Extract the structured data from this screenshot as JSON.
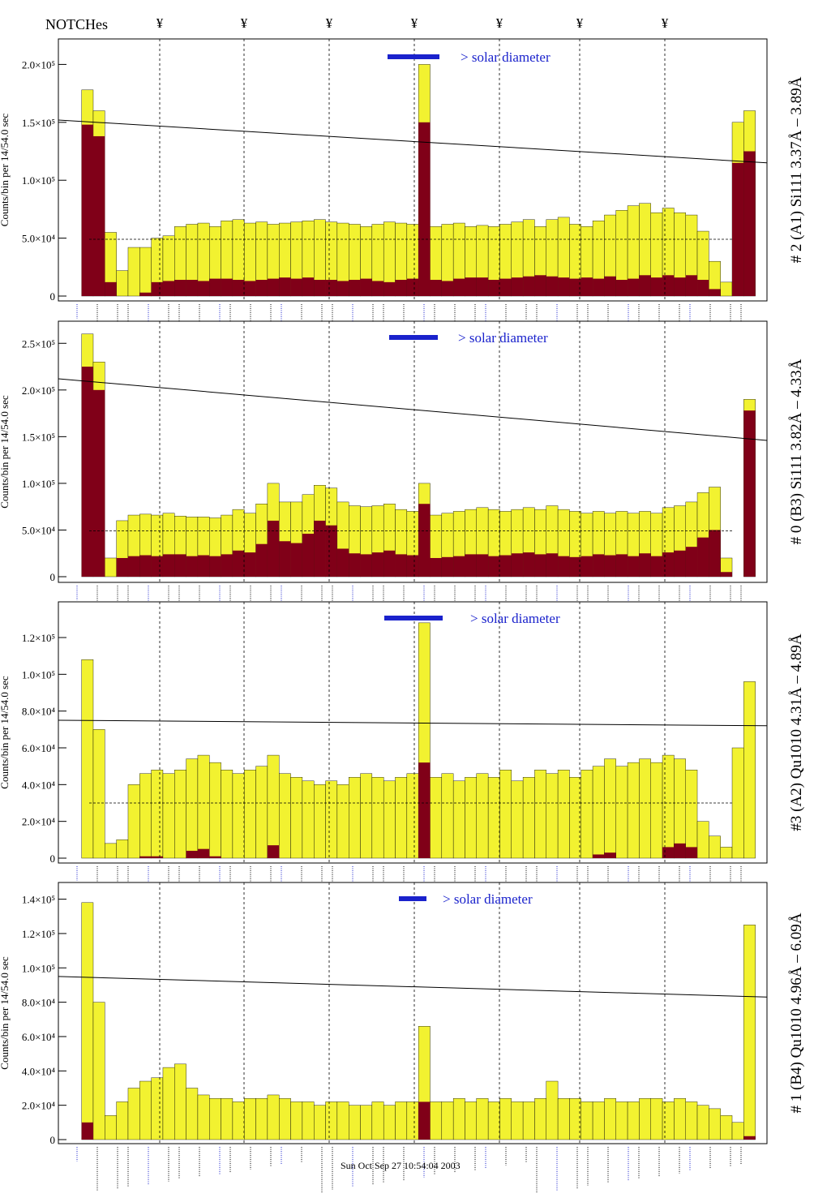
{
  "header": {
    "title": "NOTCHes",
    "notch_symbol": "¥"
  },
  "footer_text": "Sun Oct  Sep 27 10:54:04 2003",
  "colors": {
    "total": "#f2f230",
    "component": "#800018",
    "legend_bar": "#1a22cc",
    "legend_text": "#1a22cc",
    "line_blue": "#1a22cc",
    "line_purple": "#6a0a6a"
  },
  "chart_data": [
    {
      "type": "bar",
      "title": "# 2 (A1) Si111  3.37Å – 3.89Å",
      "ylabel": "Counts/bin per  14/54.0 sec",
      "ylim": [
        0,
        215000
      ],
      "yticks": [
        0,
        50000,
        100000,
        150000,
        200000
      ],
      "yticklabels": [
        "0",
        "5.0×10⁴",
        "1.0×10⁵",
        "1.5×10⁵",
        "2.0×10⁵"
      ],
      "legend": "> solar diameter",
      "diagonal_line": [
        152000,
        115000
      ],
      "dashed_level": 49000,
      "series": [
        {
          "name": "total",
          "values": [
            0,
            0,
            178000,
            160000,
            55000,
            22000,
            42000,
            42000,
            50000,
            52000,
            60000,
            62000,
            63000,
            60000,
            65000,
            66000,
            63000,
            64000,
            62000,
            63000,
            64000,
            65000,
            66000,
            64000,
            63000,
            62000,
            60000,
            62000,
            64000,
            63000,
            62000,
            200000,
            60000,
            62000,
            63000,
            60000,
            61000,
            60000,
            62000,
            64000,
            66000,
            60000,
            66000,
            68000,
            62000,
            60000,
            65000,
            70000,
            74000,
            78000,
            80000,
            72000,
            76000,
            72000,
            70000,
            56000,
            30000,
            12000,
            150000,
            160000,
            0
          ]
        },
        {
          "name": "component",
          "values": [
            0,
            0,
            148000,
            138000,
            12000,
            0,
            0,
            3000,
            12000,
            13000,
            14000,
            14000,
            13000,
            15000,
            15000,
            14000,
            13000,
            14000,
            15000,
            16000,
            15000,
            16000,
            14000,
            14000,
            13000,
            14000,
            15000,
            13000,
            12000,
            14000,
            15000,
            150000,
            14000,
            13000,
            15000,
            16000,
            16000,
            14000,
            15000,
            16000,
            17000,
            18000,
            17000,
            16000,
            15000,
            16000,
            15000,
            17000,
            14000,
            15000,
            18000,
            16000,
            18000,
            16000,
            18000,
            14000,
            6000,
            0,
            115000,
            125000,
            0
          ]
        }
      ]
    },
    {
      "type": "bar",
      "title": "# 0 (B3) Si111  3.82Å – 4.33Å",
      "ylabel": "Counts/bin per  14/54.0 sec",
      "ylim": [
        0,
        265000
      ],
      "yticks": [
        0,
        50000,
        100000,
        150000,
        200000,
        250000
      ],
      "yticklabels": [
        "0",
        "5.0×10⁴",
        "1.0×10⁵",
        "1.5×10⁵",
        "2.0×10⁵",
        "2.5×10⁵"
      ],
      "legend": "> solar diameter",
      "diagonal_line": [
        212000,
        146000
      ],
      "dashed_level": 49000,
      "series": [
        {
          "name": "total",
          "values": [
            0,
            0,
            260000,
            230000,
            20000,
            60000,
            66000,
            67000,
            66000,
            68000,
            65000,
            64000,
            64000,
            63000,
            66000,
            72000,
            68000,
            78000,
            100000,
            80000,
            80000,
            88000,
            98000,
            95000,
            80000,
            76000,
            75000,
            76000,
            78000,
            72000,
            70000,
            100000,
            66000,
            68000,
            70000,
            72000,
            74000,
            72000,
            70000,
            72000,
            74000,
            72000,
            76000,
            72000,
            70000,
            68000,
            70000,
            68000,
            70000,
            68000,
            70000,
            68000,
            74000,
            76000,
            80000,
            90000,
            96000,
            20000,
            0,
            190000,
            0
          ]
        },
        {
          "name": "component",
          "values": [
            0,
            0,
            225000,
            200000,
            0,
            20000,
            22000,
            23000,
            22000,
            24000,
            24000,
            22000,
            23000,
            22000,
            24000,
            28000,
            26000,
            35000,
            60000,
            38000,
            36000,
            46000,
            60000,
            55000,
            30000,
            25000,
            24000,
            26000,
            28000,
            24000,
            23000,
            78000,
            20000,
            21000,
            22000,
            24000,
            24000,
            22000,
            23000,
            25000,
            26000,
            24000,
            25000,
            22000,
            21000,
            22000,
            24000,
            23000,
            24000,
            22000,
            25000,
            22000,
            26000,
            28000,
            32000,
            42000,
            50000,
            5000,
            0,
            178000,
            0
          ]
        }
      ]
    },
    {
      "type": "bar",
      "title": "#3 (A2) Qu1010  4.31Å – 4.89Å",
      "ylabel": "Counts/bin per  14/54.0 sec",
      "ylim": [
        0,
        135000
      ],
      "yticks": [
        0,
        20000,
        40000,
        60000,
        80000,
        100000,
        120000
      ],
      "yticklabels": [
        "0",
        "2.0×10⁴",
        "4.0×10⁴",
        "6.0×10⁴",
        "8.0×10⁴",
        "1.0×10⁵",
        "1.2×10⁵"
      ],
      "legend": "> solar diameter",
      "diagonal_line": [
        75000,
        72000
      ],
      "dashed_level": 30000,
      "series": [
        {
          "name": "total",
          "values": [
            0,
            0,
            108000,
            70000,
            8000,
            10000,
            40000,
            46000,
            48000,
            46000,
            48000,
            54000,
            56000,
            52000,
            48000,
            46000,
            48000,
            50000,
            56000,
            46000,
            44000,
            42000,
            40000,
            42000,
            40000,
            44000,
            46000,
            44000,
            42000,
            44000,
            46000,
            128000,
            44000,
            46000,
            42000,
            44000,
            46000,
            44000,
            48000,
            42000,
            44000,
            48000,
            46000,
            48000,
            44000,
            48000,
            50000,
            54000,
            50000,
            52000,
            54000,
            52000,
            56000,
            54000,
            48000,
            20000,
            12000,
            6000,
            60000,
            96000,
            0
          ]
        },
        {
          "name": "component",
          "values": [
            0,
            0,
            0,
            0,
            0,
            0,
            0,
            1000,
            1000,
            0,
            0,
            4000,
            5000,
            1000,
            0,
            0,
            0,
            0,
            7000,
            0,
            0,
            0,
            0,
            0,
            0,
            0,
            0,
            0,
            0,
            0,
            0,
            52000,
            0,
            0,
            0,
            0,
            0,
            0,
            0,
            0,
            0,
            0,
            0,
            0,
            0,
            0,
            2000,
            3000,
            0,
            0,
            0,
            0,
            6000,
            8000,
            6000,
            0,
            0,
            0,
            0,
            0,
            0
          ]
        }
      ]
    },
    {
      "type": "bar",
      "title": "# 1 (B4) Qu1010 4.96Å – 6.09Å",
      "ylabel": "Counts/bin per  14/54.0 sec",
      "ylim": [
        0,
        145000
      ],
      "yticks": [
        0,
        20000,
        40000,
        60000,
        80000,
        100000,
        120000,
        140000
      ],
      "yticklabels": [
        "0",
        "2.0×10⁴",
        "4.0×10⁴",
        "6.0×10⁴",
        "8.0×10⁴",
        "1.0×10⁵",
        "1.2×10⁵",
        "1.4×10⁵"
      ],
      "legend": "> solar diameter",
      "diagonal_line": [
        95000,
        83000
      ],
      "dashed_level": 0,
      "series": [
        {
          "name": "total",
          "values": [
            0,
            0,
            138000,
            80000,
            14000,
            22000,
            30000,
            34000,
            36000,
            42000,
            44000,
            30000,
            26000,
            24000,
            24000,
            22000,
            24000,
            24000,
            26000,
            24000,
            22000,
            22000,
            20000,
            22000,
            22000,
            20000,
            20000,
            22000,
            20000,
            22000,
            22000,
            66000,
            22000,
            22000,
            24000,
            22000,
            24000,
            22000,
            24000,
            22000,
            22000,
            24000,
            34000,
            24000,
            24000,
            22000,
            22000,
            24000,
            22000,
            22000,
            24000,
            24000,
            22000,
            24000,
            22000,
            20000,
            18000,
            14000,
            10000,
            125000,
            0
          ]
        },
        {
          "name": "component",
          "values": [
            0,
            0,
            10000,
            0,
            0,
            0,
            0,
            0,
            0,
            0,
            0,
            0,
            0,
            0,
            0,
            0,
            0,
            0,
            0,
            0,
            0,
            0,
            0,
            0,
            0,
            0,
            0,
            0,
            0,
            0,
            0,
            22000,
            0,
            0,
            0,
            0,
            0,
            0,
            0,
            0,
            0,
            0,
            0,
            0,
            0,
            0,
            0,
            0,
            0,
            0,
            0,
            0,
            0,
            0,
            0,
            0,
            0,
            0,
            0,
            2000,
            0
          ]
        }
      ]
    }
  ]
}
